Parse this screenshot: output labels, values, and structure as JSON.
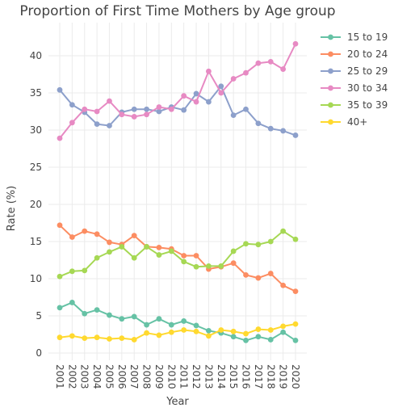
{
  "chart_data": {
    "type": "line",
    "title": "Proportion of First Time Mothers by Age group",
    "xlabel": "Year",
    "ylabel": "Rate (%)",
    "ylim": [
      0,
      44
    ],
    "yticks": [
      0,
      5,
      10,
      15,
      20,
      25,
      30,
      35,
      40
    ],
    "grid": true,
    "legend_position": "right",
    "x": [
      "2001",
      "2002",
      "2003",
      "2004",
      "2005",
      "2006",
      "2007",
      "2008",
      "2009",
      "2010",
      "2011",
      "2012",
      "2013",
      "2014",
      "2015",
      "2016",
      "2017",
      "2018",
      "2019",
      "2020"
    ],
    "series": [
      {
        "name": "15 to 19",
        "color": "#66c2a5",
        "values": [
          6.1,
          6.8,
          5.3,
          5.8,
          5.1,
          4.6,
          4.9,
          3.8,
          4.6,
          3.8,
          4.3,
          3.7,
          3.0,
          2.7,
          2.2,
          1.7,
          2.2,
          1.8,
          2.8,
          1.7
        ]
      },
      {
        "name": "20 to 24",
        "color": "#fc8d62",
        "values": [
          17.2,
          15.6,
          16.4,
          16.0,
          14.9,
          14.6,
          15.8,
          14.3,
          14.2,
          14.0,
          13.1,
          13.1,
          11.3,
          11.6,
          12.1,
          10.5,
          10.1,
          10.7,
          9.1,
          8.3
        ]
      },
      {
        "name": "25 to 29",
        "color": "#8da0cb",
        "values": [
          35.4,
          33.4,
          32.4,
          30.8,
          30.6,
          32.4,
          32.8,
          32.8,
          32.5,
          33.1,
          32.7,
          34.9,
          33.8,
          35.9,
          32.0,
          32.8,
          30.9,
          30.2,
          29.9,
          29.3
        ]
      },
      {
        "name": "30 to 34",
        "color": "#e78ac3",
        "values": [
          28.9,
          31.0,
          32.8,
          32.5,
          33.9,
          32.1,
          31.8,
          32.1,
          33.1,
          32.8,
          34.6,
          33.8,
          37.9,
          35.0,
          36.9,
          37.7,
          39.0,
          39.2,
          38.2,
          41.6
        ]
      },
      {
        "name": "35 to 39",
        "color": "#a6d854",
        "values": [
          10.3,
          11.0,
          11.1,
          12.8,
          13.6,
          14.3,
          12.8,
          14.3,
          13.2,
          13.7,
          12.3,
          11.6,
          11.7,
          11.7,
          13.7,
          14.7,
          14.6,
          15.0,
          16.4,
          15.3
        ]
      },
      {
        "name": "40+",
        "color": "#ffd92f",
        "values": [
          2.1,
          2.3,
          2.0,
          2.1,
          1.9,
          2.0,
          1.8,
          2.7,
          2.4,
          2.8,
          3.1,
          2.9,
          2.3,
          3.1,
          2.9,
          2.6,
          3.2,
          3.1,
          3.6,
          3.9
        ]
      }
    ]
  }
}
